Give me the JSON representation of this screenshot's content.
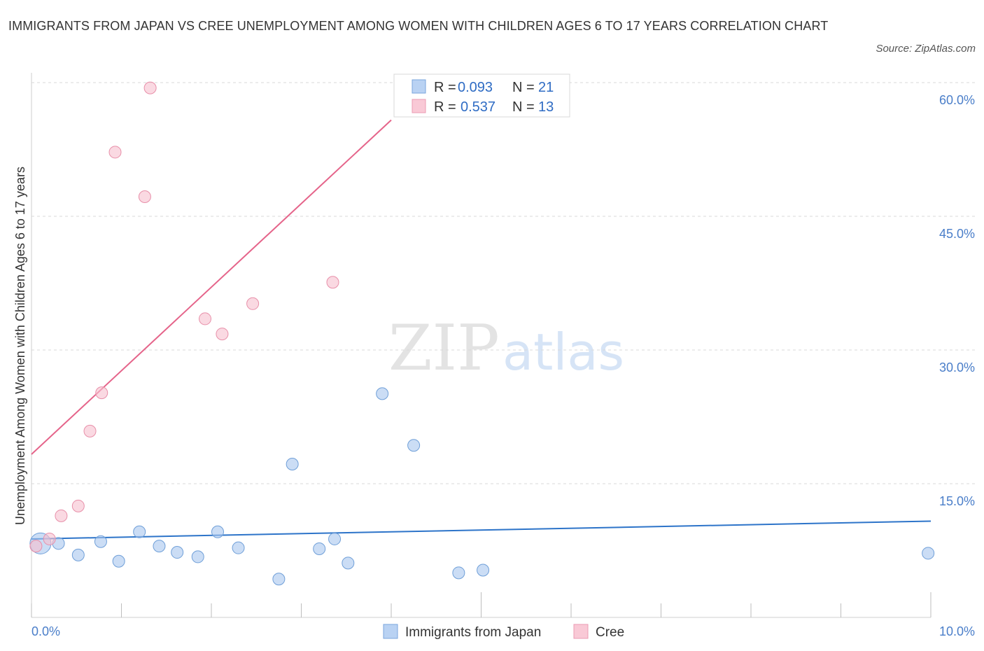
{
  "title": "IMMIGRANTS FROM JAPAN VS CREE UNEMPLOYMENT AMONG WOMEN WITH CHILDREN AGES 6 TO 17 YEARS CORRELATION CHART",
  "source": "Source: ZipAtlas.com",
  "watermark": {
    "zip": "ZIP",
    "atlas": "atlas"
  },
  "chart_data": {
    "type": "scatter",
    "title": "IMMIGRANTS FROM JAPAN VS CREE UNEMPLOYMENT AMONG WOMEN WITH CHILDREN AGES 6 TO 17 YEARS CORRELATION CHART",
    "xlabel": "",
    "ylabel": "Unemployment Among Women with Children Ages 6 to 17 years",
    "xlim": [
      0,
      10
    ],
    "ylim": [
      0,
      60
    ],
    "x_tick_labels": [
      "0.0%",
      "10.0%"
    ],
    "y_ticks": [
      15,
      30,
      45,
      60
    ],
    "y_tick_labels": [
      "15.0%",
      "30.0%",
      "45.0%",
      "60.0%"
    ],
    "grid": true,
    "legend": {
      "placement": "top-center",
      "entries": [
        {
          "r_label": "R =",
          "r_value": "0.093",
          "n_label": "N =",
          "n_value": "21"
        },
        {
          "r_label": "R =",
          "r_value": "0.537",
          "n_label": "N =",
          "n_value": "13"
        }
      ]
    },
    "series": [
      {
        "name": "Immigrants from Japan",
        "color": "#a9c7ef",
        "stroke": "#6f9fd8",
        "trend_color": "#2d74c9",
        "trend": {
          "x0": 0,
          "y0": 8.8,
          "x1": 10,
          "y1": 10.8
        },
        "points": [
          {
            "x": 0.1,
            "y": 8.3,
            "big": true
          },
          {
            "x": 0.3,
            "y": 8.3
          },
          {
            "x": 0.52,
            "y": 7.0
          },
          {
            "x": 0.77,
            "y": 8.5
          },
          {
            "x": 0.97,
            "y": 6.3
          },
          {
            "x": 1.2,
            "y": 9.6
          },
          {
            "x": 1.42,
            "y": 8.0
          },
          {
            "x": 1.62,
            "y": 7.3
          },
          {
            "x": 1.85,
            "y": 6.8
          },
          {
            "x": 2.07,
            "y": 9.6
          },
          {
            "x": 2.3,
            "y": 7.8
          },
          {
            "x": 2.75,
            "y": 4.3
          },
          {
            "x": 2.9,
            "y": 17.2
          },
          {
            "x": 3.2,
            "y": 7.7
          },
          {
            "x": 3.37,
            "y": 8.8
          },
          {
            "x": 3.52,
            "y": 6.1
          },
          {
            "x": 3.9,
            "y": 25.1
          },
          {
            "x": 4.25,
            "y": 19.3
          },
          {
            "x": 4.75,
            "y": 5.0
          },
          {
            "x": 5.02,
            "y": 5.3
          },
          {
            "x": 9.97,
            "y": 7.2
          }
        ]
      },
      {
        "name": "Cree",
        "color": "#f6bfcf",
        "stroke": "#e88fa9",
        "trend_color": "#e5648a",
        "trend": {
          "x0": 0,
          "y0": 18.3,
          "x1": 4.0,
          "y1": 55.8
        },
        "points": [
          {
            "x": 0.05,
            "y": 8.0
          },
          {
            "x": 0.2,
            "y": 8.8
          },
          {
            "x": 0.33,
            "y": 11.4
          },
          {
            "x": 0.52,
            "y": 12.5
          },
          {
            "x": 0.65,
            "y": 20.9
          },
          {
            "x": 0.78,
            "y": 25.2
          },
          {
            "x": 0.93,
            "y": 52.2
          },
          {
            "x": 1.26,
            "y": 47.2
          },
          {
            "x": 1.32,
            "y": 59.4
          },
          {
            "x": 1.93,
            "y": 33.5
          },
          {
            "x": 2.12,
            "y": 31.8
          },
          {
            "x": 2.46,
            "y": 35.2
          },
          {
            "x": 3.35,
            "y": 37.6
          }
        ]
      }
    ]
  }
}
